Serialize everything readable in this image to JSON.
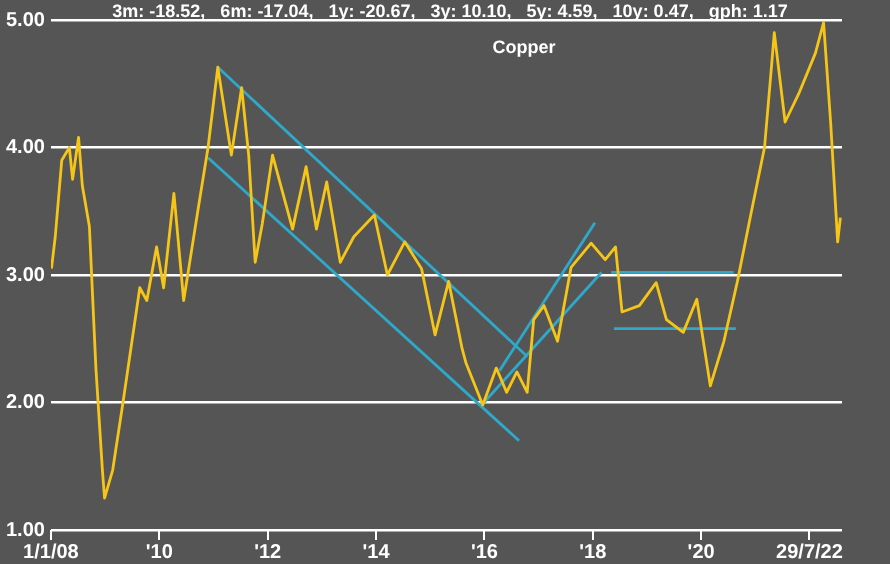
{
  "chart_data": {
    "type": "line",
    "title": "Copper",
    "annotations": [
      "3m: -18.52,   6m: -17.04,   1y: -20.67,   3y: 10.10,   5y: 4.59,   10y: 0.47,   gph: 1.17"
    ],
    "xlim": [
      2008,
      2022.6
    ],
    "xticks": [
      {
        "value": 2008,
        "label": "1/1/08"
      },
      {
        "value": 2010,
        "label": "'10"
      },
      {
        "value": 2012,
        "label": "'12"
      },
      {
        "value": 2014,
        "label": "'14"
      },
      {
        "value": 2016,
        "label": "'16"
      },
      {
        "value": 2018,
        "label": "'18"
      },
      {
        "value": 2020,
        "label": "'20"
      },
      {
        "value": 2022,
        "label": "29/7/22"
      }
    ],
    "ylim": [
      1,
      5
    ],
    "yticks": [
      {
        "value": 1,
        "label": "1.00"
      },
      {
        "value": 2,
        "label": "2.00"
      },
      {
        "value": 3,
        "label": "3.00"
      },
      {
        "value": 4,
        "label": "4.00"
      },
      {
        "value": 5,
        "label": "5.00"
      }
    ],
    "grid": "y",
    "legend": false,
    "marker": "none",
    "line_style": "solid",
    "series": [
      {
        "color": "#f5c518",
        "x": [
          2008.01,
          2008.08,
          2008.2,
          2008.34,
          2008.4,
          2008.51,
          2008.58,
          2008.71,
          2008.83,
          2008.95,
          2008.99,
          2009.14,
          2009.33,
          2009.64,
          2009.77,
          2009.95,
          2010.08,
          2010.27,
          2010.45,
          2010.71,
          2010.9,
          2011.08,
          2011.33,
          2011.52,
          2011.65,
          2011.77,
          2011.9,
          2012.09,
          2012.46,
          2012.71,
          2012.9,
          2013.09,
          2013.34,
          2013.59,
          2013.97,
          2014.21,
          2014.53,
          2014.84,
          2015.09,
          2015.34,
          2015.59,
          2015.66,
          2015.97,
          2016.22,
          2016.41,
          2016.6,
          2016.79,
          2016.91,
          2017.1,
          2017.35,
          2017.6,
          2017.97,
          2018.23,
          2018.42,
          2018.54,
          2018.86,
          2019.17,
          2019.36,
          2019.67,
          2019.92,
          2020.17,
          2020.42,
          2020.67,
          2020.92,
          2021.17,
          2021.3,
          2021.35,
          2021.55,
          2021.8,
          2022.11,
          2022.26,
          2022.39,
          2022.52,
          2022.57
        ],
        "values": [
          3.05,
          3.3,
          3.9,
          4.0,
          3.75,
          4.08,
          3.7,
          3.38,
          2.27,
          1.47,
          1.25,
          1.47,
          2.0,
          2.9,
          2.8,
          3.22,
          2.9,
          3.64,
          2.8,
          3.5,
          4.0,
          4.63,
          3.94,
          4.47,
          3.94,
          3.1,
          3.4,
          3.94,
          3.36,
          3.85,
          3.36,
          3.73,
          3.1,
          3.3,
          3.47,
          3.0,
          3.26,
          3.05,
          2.53,
          2.95,
          2.42,
          2.31,
          1.98,
          2.27,
          2.08,
          2.24,
          2.08,
          2.65,
          2.76,
          2.48,
          3.06,
          3.25,
          3.12,
          3.22,
          2.71,
          2.76,
          2.94,
          2.65,
          2.55,
          2.81,
          2.13,
          2.48,
          2.95,
          3.48,
          4.0,
          4.64,
          4.9,
          4.2,
          4.42,
          4.74,
          4.98,
          4.2,
          3.26,
          3.45
        ]
      },
      {
        "type": "line",
        "color": "#2fa8c9",
        "x": [
          2011.08,
          2016.79
        ],
        "values": [
          4.63,
          2.36
        ]
      },
      {
        "type": "line",
        "color": "#2fa8c9",
        "x": [
          2010.9,
          2016.64
        ],
        "values": [
          3.92,
          1.7
        ]
      },
      {
        "type": "line",
        "color": "#2fa8c9",
        "x": [
          2015.97,
          2018.16
        ],
        "values": [
          1.99,
          3.02
        ]
      },
      {
        "type": "line",
        "color": "#2fa8c9",
        "x": [
          2016.28,
          2018.04
        ],
        "values": [
          2.25,
          3.41
        ]
      },
      {
        "type": "line",
        "color": "#2fa8c9",
        "x": [
          2018.34,
          2020.6
        ],
        "values": [
          3.02,
          3.02
        ]
      },
      {
        "type": "line",
        "color": "#2fa8c9",
        "x": [
          2018.39,
          2020.64
        ],
        "values": [
          2.58,
          2.58
        ]
      }
    ]
  }
}
